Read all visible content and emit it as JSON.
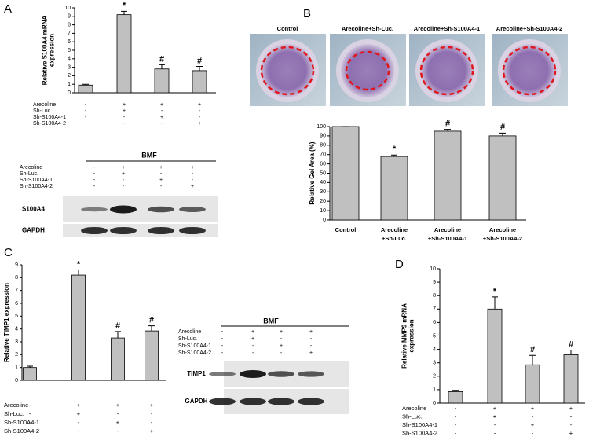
{
  "panels": {
    "labels": [
      "A",
      "B",
      "C",
      "D"
    ]
  },
  "photos": {
    "labels": [
      "Control",
      "Arecoline+Sh-Luc.",
      "Arecoline+Sh-S100A4-1",
      "Arecoline+Sh-S100A4-2"
    ]
  },
  "blots": [
    {
      "title": "BMF",
      "conditions": {
        "labels": [
          "Arecoline",
          "Sh-Luc.",
          "Sh-S100A4-1",
          "Sh-S100A4-2"
        ],
        "rows": [
          [
            "-",
            "+",
            "+",
            "+"
          ],
          [
            "-",
            "+",
            "-",
            "-"
          ],
          [
            "-",
            "-",
            "+",
            "-"
          ],
          [
            "-",
            "-",
            "-",
            "+"
          ]
        ]
      },
      "bands": [
        "S100A4",
        "GAPDH"
      ]
    },
    {
      "title": "BMF",
      "conditions": {
        "labels": [
          "Arecoline",
          "Sh-Luc.",
          "Sh-S100A4-1",
          "Sh-S100A4-2"
        ],
        "rows": [
          [
            "-",
            "+",
            "+",
            "+"
          ],
          [
            "-",
            "+",
            "-",
            "-"
          ],
          [
            "-",
            "-",
            "+",
            "-"
          ],
          [
            "-",
            "-",
            "-",
            "+"
          ]
        ]
      },
      "bands": [
        "TIMP1",
        "GAPDH"
      ]
    }
  ],
  "chart_data": [
    {
      "type": "bar",
      "y_label": [
        "Relative S100A4 mRNA",
        "expression"
      ],
      "values": [
        0.9,
        9.2,
        2.8,
        2.6
      ],
      "errors": [
        0.1,
        0.4,
        0.5,
        0.5
      ],
      "annotations": [
        null,
        "*",
        "#",
        "#"
      ],
      "ylim": [
        0,
        10
      ],
      "yticks": [
        0,
        1,
        2,
        3,
        4,
        5,
        6,
        7,
        8,
        9,
        10
      ],
      "color": "#c0c0c0",
      "conditions": {
        "labels": [
          "Arecoline",
          "Sh-Luc.",
          "Sh-S100A4-1",
          "Sh-S100A4-2"
        ],
        "rows": [
          [
            "-",
            "+",
            "+",
            "+"
          ],
          [
            "-",
            "+",
            "-",
            "-"
          ],
          [
            "-",
            "-",
            "+",
            "-"
          ],
          [
            "-",
            "-",
            "-",
            "+"
          ]
        ]
      }
    },
    {
      "type": "bar",
      "y_label": [
        "Relative Gel Area (%)"
      ],
      "categories": [
        [
          "Control"
        ],
        [
          "Arecoline",
          "+Sh-Luc."
        ],
        [
          "Arecoline",
          "+Sh-S100A4-1"
        ],
        [
          "Arecoline",
          "+Sh-S100A4-2"
        ]
      ],
      "values": [
        100,
        68,
        95,
        90
      ],
      "errors": [
        0,
        1.5,
        2,
        3
      ],
      "annotations": [
        null,
        "*",
        "#",
        "#"
      ],
      "ylim": [
        0,
        100
      ],
      "yticks": [
        0,
        10,
        20,
        30,
        40,
        50,
        60,
        70,
        80,
        90,
        100
      ],
      "color": "#c0c0c0"
    },
    {
      "type": "bar",
      "y_label": [
        "Relative TIMP1 expression"
      ],
      "values": [
        1.0,
        8.2,
        3.3,
        3.85
      ],
      "errors": [
        0.1,
        0.4,
        0.5,
        0.4
      ],
      "annotations": [
        null,
        "*",
        "#",
        "#"
      ],
      "ylim": [
        0,
        9
      ],
      "yticks": [
        0,
        1,
        2,
        3,
        4,
        5,
        6,
        7,
        8,
        9
      ],
      "color": "#c0c0c0",
      "conditions": {
        "labels": [
          "Arecoline",
          "Sh-Luc.",
          "Sh-S100A4-1",
          "Sh-S100A4-2"
        ],
        "rows": [
          [
            "-",
            "+",
            "+",
            "+"
          ],
          [
            "-",
            "+",
            "-",
            "-"
          ],
          [
            "-",
            "-",
            "+",
            "-"
          ],
          [
            "-",
            "-",
            "-",
            "+"
          ]
        ]
      }
    },
    {
      "type": "bar",
      "y_label": [
        "Relative MMP9 mRNA",
        "expression"
      ],
      "values": [
        0.85,
        7.0,
        2.85,
        3.6
      ],
      "errors": [
        0.1,
        0.9,
        0.7,
        0.35
      ],
      "annotations": [
        null,
        "*",
        "#",
        "#"
      ],
      "ylim": [
        0,
        10
      ],
      "yticks": [
        0,
        1,
        2,
        3,
        4,
        5,
        6,
        7,
        8,
        9,
        10
      ],
      "color": "#c0c0c0",
      "conditions": {
        "labels": [
          "Arecoline",
          "Sh-Luc.",
          "Sh-S100A4-1",
          "Sh-S100A4-2"
        ],
        "rows": [
          [
            "-",
            "+",
            "+",
            "+"
          ],
          [
            "-",
            "+",
            "-",
            "-"
          ],
          [
            "-",
            "-",
            "+",
            "-"
          ],
          [
            "-",
            "-",
            "-",
            "+"
          ]
        ]
      }
    }
  ]
}
